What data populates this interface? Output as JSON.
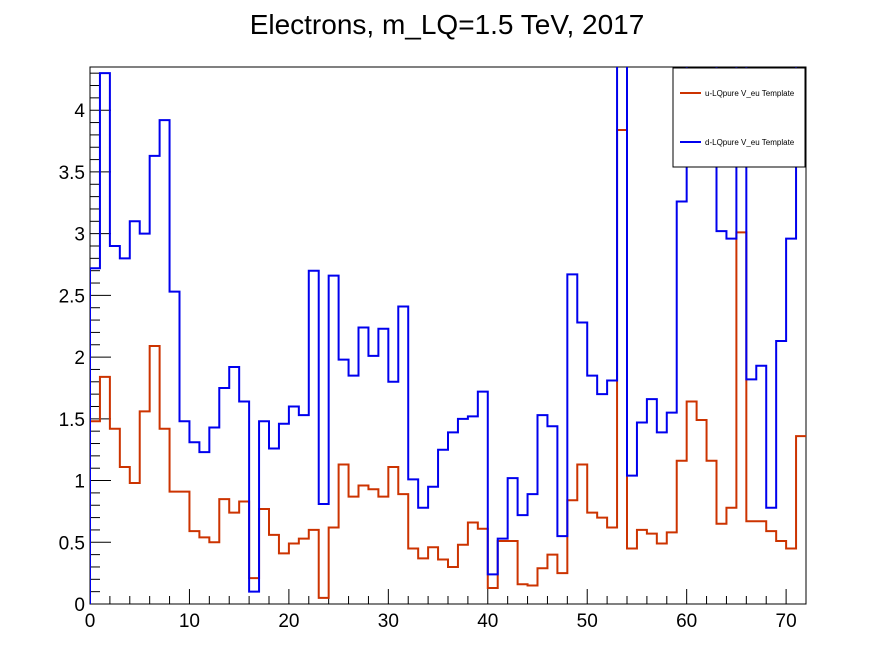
{
  "chart_data": {
    "type": "line",
    "title": "Electrons, m_LQ=1.5 TeV, 2017",
    "xlabel": "",
    "ylabel": "",
    "xlim": [
      0,
      72
    ],
    "ylim": [
      0,
      4.35
    ],
    "xticks": [
      0,
      10,
      20,
      30,
      40,
      50,
      60,
      70
    ],
    "yticks": [
      0,
      0.5,
      1,
      1.5,
      2,
      2.5,
      3,
      3.5,
      4
    ],
    "ytick_labels": [
      "0",
      "0.5",
      "1",
      "1.5",
      "2",
      "2.5",
      "3",
      "3.5",
      "4"
    ],
    "grid": false,
    "legend_position": "top-right",
    "series": [
      {
        "name": "u-LQpure V_eu Template",
        "color": "#cc3300",
        "values": [
          1.48,
          1.84,
          1.42,
          1.11,
          0.98,
          1.56,
          2.09,
          1.42,
          0.91,
          0.91,
          0.59,
          0.54,
          0.5,
          0.85,
          0.74,
          0.83,
          0.21,
          0.77,
          0.56,
          0.41,
          0.49,
          0.53,
          0.6,
          0.05,
          0.62,
          1.13,
          0.87,
          0.96,
          0.93,
          0.87,
          1.11,
          0.89,
          0.45,
          0.37,
          0.46,
          0.36,
          0.3,
          0.48,
          0.66,
          0.61,
          0.13,
          0.51,
          0.51,
          0.16,
          0.15,
          0.29,
          0.4,
          0.25,
          0.84,
          1.13,
          0.74,
          0.7,
          0.62,
          3.84,
          0.45,
          0.6,
          0.57,
          0.49,
          0.58,
          1.16,
          1.64,
          1.49,
          1.16,
          0.65,
          0.78,
          3.01,
          0.67,
          0.67,
          0.59,
          0.51,
          0.45,
          1.36
        ]
      },
      {
        "name": "d-LQpure V_eu Template",
        "color": "#0000ee",
        "values": [
          2.72,
          4.3,
          2.9,
          2.8,
          3.1,
          3.0,
          3.63,
          3.92,
          2.53,
          1.48,
          1.31,
          1.23,
          1.43,
          1.75,
          1.92,
          1.64,
          0.1,
          1.48,
          1.26,
          1.46,
          1.6,
          1.53,
          2.7,
          0.81,
          2.66,
          1.98,
          1.85,
          2.24,
          2.01,
          2.23,
          1.8,
          2.41,
          1.01,
          0.78,
          0.95,
          1.25,
          1.39,
          1.5,
          1.52,
          1.72,
          0.24,
          0.53,
          1.02,
          0.72,
          0.89,
          1.53,
          1.44,
          0.55,
          2.67,
          2.28,
          1.85,
          1.7,
          1.81,
          4.5,
          1.04,
          1.47,
          1.66,
          1.39,
          1.55,
          3.26,
          4.5,
          4.5,
          4.5,
          3.02,
          2.96,
          4.5,
          1.82,
          1.93,
          0.78,
          2.13,
          2.96,
          4.5
        ]
      }
    ]
  }
}
